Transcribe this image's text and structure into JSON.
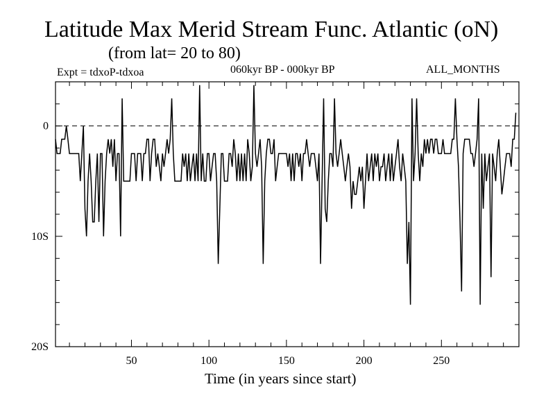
{
  "chart_data": {
    "type": "line",
    "title": "Latitude Max Merid Stream Func. Atlantic (oN)",
    "subtitle": "(from lat= 20 to 80)",
    "annotations": {
      "left": "Expt = tdxoP-tdxoa",
      "center": "060kyr BP - 000kyr BP",
      "right": "ALL_MONTHS"
    },
    "xlabel": "Time (in years since start)",
    "ylabel": "",
    "xlim": [
      1,
      300
    ],
    "ylim": [
      -20,
      4
    ],
    "x_ticks": [
      {
        "value": 50,
        "label": "50"
      },
      {
        "value": 100,
        "label": "100"
      },
      {
        "value": 150,
        "label": "150"
      },
      {
        "value": 200,
        "label": "200"
      },
      {
        "value": 250,
        "label": "250"
      }
    ],
    "y_ticks": [
      {
        "value": 0,
        "label": "0"
      },
      {
        "value": -10,
        "label": "10S"
      },
      {
        "value": -20,
        "label": "20S"
      }
    ],
    "reference_line": {
      "y": 0,
      "style": "dashed"
    },
    "grid": false,
    "series": [
      {
        "color": "#000000",
        "x_start": 1,
        "x_step": 1,
        "values": [
          -1.2,
          -2.5,
          -2.5,
          -2.5,
          -1.2,
          -1.2,
          -1.2,
          0,
          -1.2,
          -2.5,
          -2.5,
          -2.5,
          -2.5,
          -2.5,
          -2.5,
          -2.5,
          -5,
          -2.5,
          0,
          -7.5,
          -10,
          -5,
          -2.5,
          -5,
          -8.7,
          -8.7,
          -5,
          -2.5,
          -8.7,
          -2.5,
          -2.5,
          -10,
          -5,
          -2.5,
          -1.2,
          -2.5,
          -1.2,
          -3.7,
          -1.2,
          -5,
          -2.5,
          -2.5,
          -10,
          2.5,
          -5,
          -5,
          -5,
          -5,
          -5,
          -2.5,
          -2.5,
          -2.5,
          -5,
          -2.5,
          -2.5,
          -2.5,
          -5,
          -2.5,
          -2.5,
          -1.2,
          -1.2,
          -5,
          -2.5,
          -1.2,
          -1.2,
          -3.7,
          -2.5,
          -3.7,
          -5,
          -2.5,
          -3.7,
          -2.5,
          -1.2,
          -2.5,
          -1.2,
          2.5,
          -2.5,
          -5,
          -5,
          -5,
          -5,
          -5,
          -2.5,
          -3.7,
          -2.5,
          -5,
          -2.5,
          -5,
          -3.7,
          -2.5,
          -5,
          -2.5,
          -5,
          3.7,
          -5,
          -2.5,
          -5,
          -5,
          -2.5,
          -2.5,
          -5,
          -3.7,
          -2.5,
          -2.5,
          -5,
          -12.5,
          -7.5,
          -2.5,
          -2.5,
          -5,
          -5,
          -5,
          -2.5,
          -2.5,
          -3.7,
          -1.2,
          -2.5,
          -5,
          -2.5,
          -5,
          -2.5,
          -5,
          -2.5,
          -5,
          -1.2,
          -2.5,
          -5,
          -3.7,
          3.7,
          -2.5,
          -3.7,
          -2.5,
          -1.2,
          -3.7,
          -12.5,
          -5,
          -2.5,
          -1.2,
          -1.2,
          -2.5,
          -2.5,
          -1.2,
          -5,
          -3.7,
          -2.5,
          -2.5,
          -2.5,
          -2.5,
          -2.5,
          -2.5,
          -3.7,
          -2.5,
          -5,
          -2.5,
          -5,
          -2.5,
          -2.5,
          -3.7,
          -2.5,
          -5,
          -2.5,
          -2.5,
          -1.2,
          -2.5,
          -3.7,
          -2.5,
          -2.5,
          -2.5,
          -3.7,
          -5,
          -2.5,
          -12.5,
          -5,
          2.5,
          -7.5,
          -8.7,
          -5,
          -2.5,
          -2.5,
          -3.7,
          2.5,
          -2.5,
          -3.7,
          -2.5,
          -1.2,
          -2.5,
          -3.7,
          -5,
          -3.7,
          -2.5,
          -3.7,
          -7.5,
          -5,
          -6.2,
          -6.2,
          -5,
          -3.7,
          -5,
          -3.7,
          -7.5,
          -5,
          -2.5,
          -5,
          -3.7,
          -2.5,
          -5,
          -2.5,
          -3.7,
          -2.5,
          -5,
          -3.7,
          -3.7,
          -2.5,
          -5,
          -3.7,
          -2.5,
          -5,
          -2.5,
          -5,
          -3.7,
          -2.5,
          -1.2,
          -3.7,
          -5,
          -2.5,
          -3.7,
          -5,
          -12.5,
          -8.7,
          -16.2,
          2.5,
          -5,
          -2.5,
          2.5,
          -2.5,
          -5,
          -2.5,
          -3.7,
          -1.2,
          -2.5,
          -1.2,
          -2.5,
          -1.2,
          -1.2,
          -2.5,
          -1.2,
          -1.2,
          -2.5,
          -2.5,
          -2.5,
          -1.2,
          -2.5,
          -2.5,
          -2.5,
          -2.5,
          -2.5,
          -1.2,
          -1.2,
          2.5,
          -1.2,
          -3.7,
          -8.7,
          -15,
          -2.5,
          -1.2,
          -1.2,
          -1.2,
          -1.2,
          -2.5,
          -2.5,
          -3.7,
          -2.5,
          -1.2,
          2.5,
          -16.2,
          -2.5,
          -7.5,
          -2.5,
          -5,
          -3.7,
          -2.5,
          -13.7,
          -2.5,
          -3.7,
          -5,
          -2.5,
          -1.2,
          -3.7,
          -6.2,
          -5,
          -3.7,
          -2.5,
          -2.5,
          -2.5,
          -3.7,
          -1.2,
          -1.2,
          1.2
        ]
      }
    ]
  }
}
